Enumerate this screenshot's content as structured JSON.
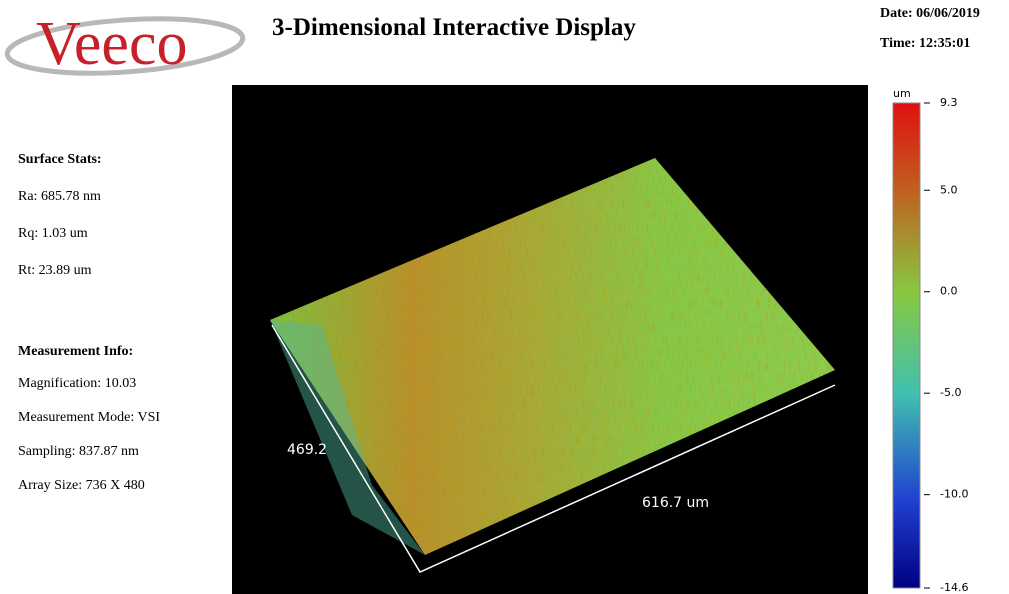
{
  "header": {
    "logo": "Veeco",
    "title": "3-Dimensional Interactive Display",
    "date": "Date: 06/06/2019",
    "time": "Time: 12:35:01"
  },
  "surface_stats": {
    "heading": "Surface Stats:",
    "items": [
      "Ra: 685.78 nm",
      "Rq: 1.03 um",
      "Rt: 23.89 um"
    ]
  },
  "measurement_info": {
    "heading": "Measurement Info:",
    "items": [
      "Magnification: 10.03",
      "Measurement Mode: VSI",
      "Sampling: 837.87 nm",
      "Array Size: 736 X 480"
    ]
  },
  "plot": {
    "y_axis_label": "469.2",
    "x_axis_label": "616.7 um"
  },
  "colorbar": {
    "unit": "um",
    "lim": [
      -14.6,
      9.3
    ],
    "ticks": [
      {
        "value": 9.3,
        "label": "9.3"
      },
      {
        "value": 5,
        "label": "5.0"
      },
      {
        "value": 0,
        "label": "0.0"
      },
      {
        "value": -5,
        "label": "-5.0"
      },
      {
        "value": -10,
        "label": "-10.0"
      },
      {
        "value": -14.6,
        "label": "-14.6"
      }
    ]
  }
}
